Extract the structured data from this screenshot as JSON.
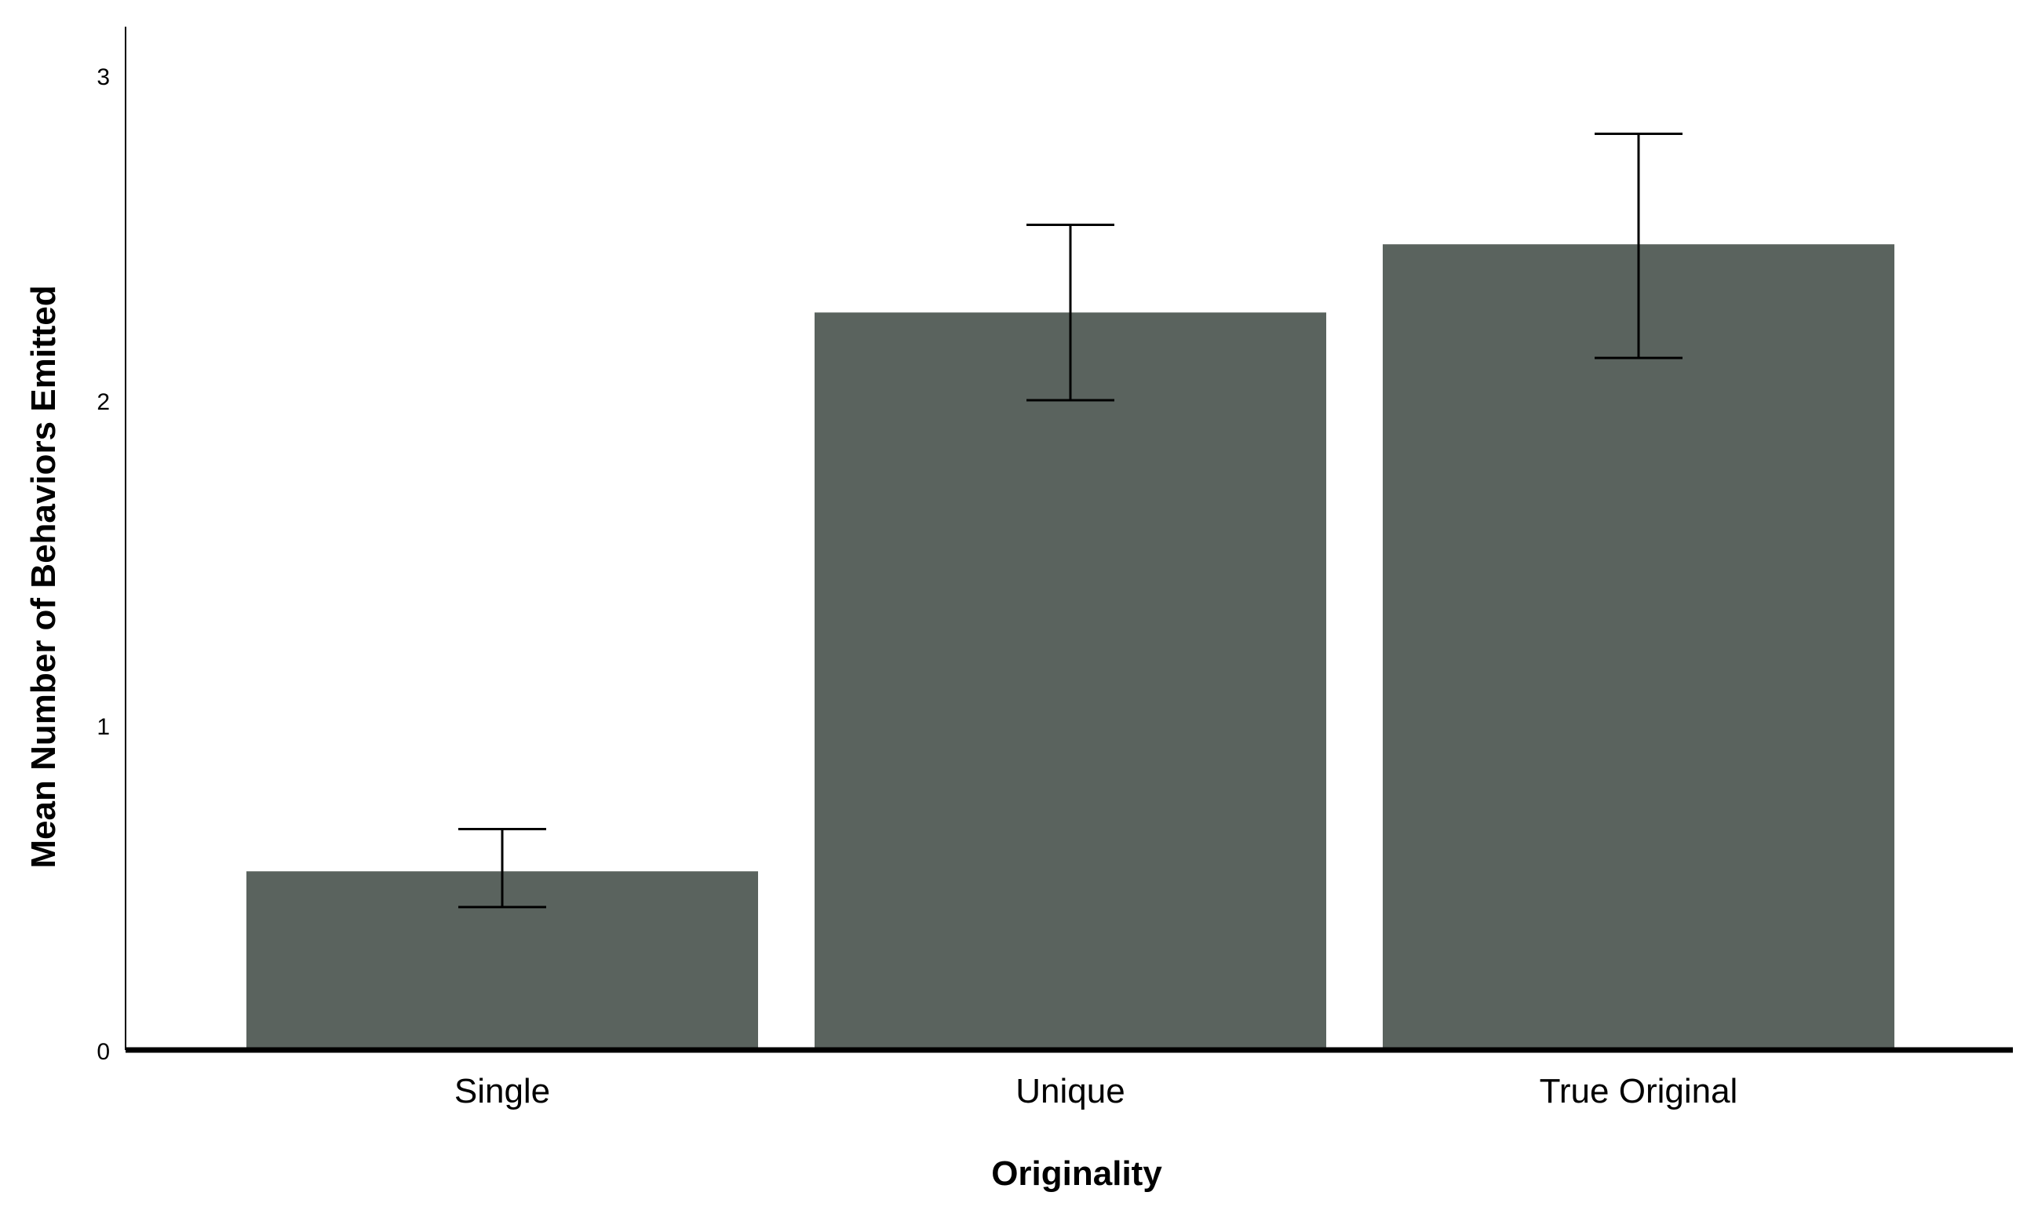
{
  "chart_data": {
    "type": "bar",
    "title": "",
    "xlabel": "Originality",
    "ylabel": "Mean Number of Behaviors Emitted",
    "categories": [
      "Single",
      "Unique",
      "True Original"
    ],
    "values": [
      0.55,
      2.27,
      2.48
    ],
    "error_bars": {
      "lower": [
        0.44,
        2.0,
        2.13
      ],
      "upper": [
        0.68,
        2.54,
        2.82
      ]
    },
    "ylim": [
      0,
      3.15
    ],
    "yticks": [
      0,
      1,
      2,
      3
    ],
    "grid": false,
    "legend": "none",
    "colors": {
      "bar": "#5a635e",
      "axis": "#000000",
      "text": "#000000"
    }
  }
}
